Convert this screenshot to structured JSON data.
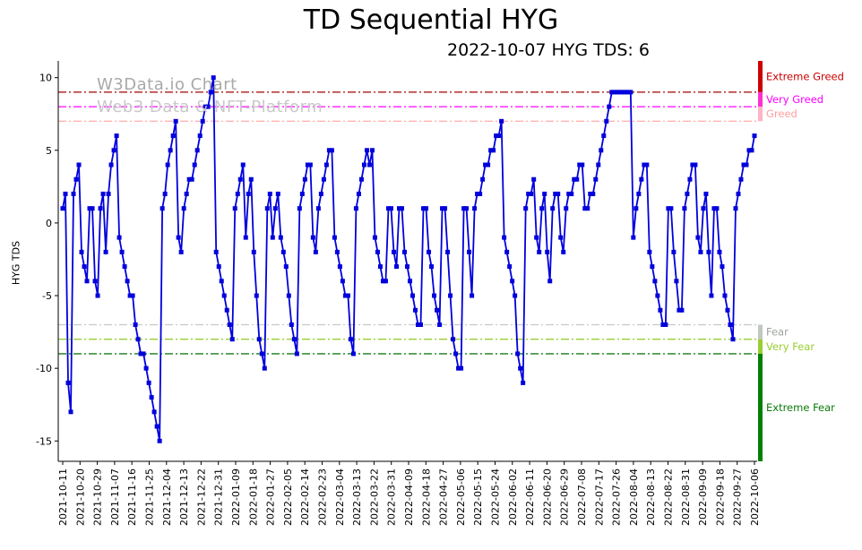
{
  "title": "TD Sequential HYG",
  "subtitle": "2022-10-07 HYG TDS: 6",
  "watermark": {
    "line1": "W3Data.io Chart",
    "line2": "Web3 Data & NFT-Platform"
  },
  "chart_data": {
    "type": "line",
    "title": "TD Sequential HYG",
    "subtitle": "2022-10-07 HYG TDS: 6",
    "xlabel": "",
    "ylabel": "HYG TDS",
    "ylim": [
      -16.4,
      11.15
    ],
    "yticks": [
      10,
      5,
      0,
      -5,
      -10,
      -15
    ],
    "grid": false,
    "legend": "none",
    "marker": "square",
    "x_tick_labels": [
      "2021-10-11",
      "2021-10-20",
      "2021-10-29",
      "2021-11-07",
      "2021-11-16",
      "2021-11-25",
      "2021-12-04",
      "2021-12-13",
      "2021-12-22",
      "2021-12-31",
      "2022-01-09",
      "2022-01-18",
      "2022-01-27",
      "2022-02-05",
      "2022-02-14",
      "2022-02-23",
      "2022-03-04",
      "2022-03-13",
      "2022-03-22",
      "2022-03-31",
      "2022-04-09",
      "2022-04-18",
      "2022-04-27",
      "2022-05-06",
      "2022-05-15",
      "2022-05-24",
      "2022-06-02",
      "2022-06-11",
      "2022-06-20",
      "2022-06-29",
      "2022-07-08",
      "2022-07-17",
      "2022-07-26",
      "2022-08-04",
      "2022-08-13",
      "2022-08-22",
      "2022-08-31",
      "2022-09-09",
      "2022-09-18",
      "2022-09-27",
      "2022-10-06"
    ],
    "series": [
      {
        "name": "HYG TDS",
        "color": "#0000dd",
        "values": [
          1,
          2,
          -11,
          -13,
          2,
          3,
          4,
          -2,
          -3,
          -4,
          1,
          1,
          -4,
          -5,
          1,
          2,
          -2,
          2,
          4,
          5,
          6,
          -1,
          -2,
          -3,
          -4,
          -5,
          -5,
          -7,
          -8,
          -9,
          -9,
          -10,
          -11,
          -12,
          -13,
          -14,
          -15,
          1,
          2,
          4,
          5,
          6,
          7,
          -1,
          -2,
          1,
          2,
          3,
          3,
          4,
          5,
          6,
          7,
          8,
          8,
          9,
          10,
          -2,
          -3,
          -4,
          -5,
          -6,
          -7,
          -8,
          1,
          2,
          3,
          4,
          -1,
          2,
          3,
          -2,
          -5,
          -8,
          -9,
          -10,
          1,
          2,
          -1,
          1,
          2,
          -1,
          -2,
          -3,
          -5,
          -7,
          -8,
          -9,
          1,
          2,
          3,
          4,
          4,
          -1,
          -2,
          1,
          2,
          3,
          4,
          5,
          5,
          -1,
          -2,
          -3,
          -4,
          -5,
          -5,
          -8,
          -9,
          1,
          2,
          3,
          4,
          5,
          4,
          5,
          -1,
          -2,
          -3,
          -4,
          -4,
          1,
          1,
          -2,
          -3,
          1,
          1,
          -2,
          -3,
          -4,
          -5,
          -6,
          -7,
          -7,
          1,
          1,
          -2,
          -3,
          -5,
          -6,
          -7,
          1,
          1,
          -2,
          -5,
          -8,
          -9,
          -10,
          -10,
          1,
          1,
          -2,
          -5,
          1,
          2,
          2,
          3,
          4,
          4,
          5,
          5,
          6,
          6,
          7,
          -1,
          -2,
          -3,
          -4,
          -5,
          -9,
          -10,
          -11,
          1,
          2,
          2,
          3,
          -1,
          -2,
          1,
          2,
          -2,
          -4,
          1,
          2,
          2,
          -1,
          -2,
          1,
          2,
          2,
          3,
          3,
          4,
          4,
          1,
          1,
          2,
          2,
          3,
          4,
          5,
          6,
          7,
          8,
          9,
          9,
          9,
          9,
          9,
          9,
          9,
          9,
          -1,
          1,
          2,
          3,
          4,
          4,
          -2,
          -3,
          -4,
          -5,
          -6,
          -7,
          -7,
          1,
          1,
          -2,
          -4,
          -6,
          -6,
          1,
          2,
          3,
          4,
          4,
          -1,
          -2,
          1,
          2,
          -2,
          -5,
          1,
          1,
          -2,
          -3,
          -5,
          -6,
          -7,
          -8,
          1,
          2,
          3,
          4,
          4,
          5,
          5,
          6
        ]
      }
    ],
    "thresholds": [
      {
        "value": 9,
        "label": "Extreme Greed",
        "line_color": "#a40000",
        "label_color": "#cc0000",
        "band": [
          11.15,
          9
        ],
        "band_color": "#cc0000"
      },
      {
        "value": 8,
        "label": "Very Greed",
        "line_color": "#ff00ff",
        "label_color": "#ff00ff",
        "band": [
          9,
          8
        ],
        "band_color": "#ff2fd2"
      },
      {
        "value": 7,
        "label": "Greed",
        "line_color": "#ffb3b3",
        "label_color": "#ff9f9f",
        "band": [
          8,
          7
        ],
        "band_color": "#ffb3c6"
      },
      {
        "value": -7,
        "label": "Fear",
        "line_color": "#c3ccc3",
        "label_color": "#9aa49a",
        "band": [
          -7,
          -8
        ],
        "band_color": "#c0c8c0"
      },
      {
        "value": -8,
        "label": "Very Fear",
        "line_color": "#9acd32",
        "label_color": "#9acd32",
        "band": [
          -8,
          -9
        ],
        "band_color": "#9acd32"
      },
      {
        "value": -9,
        "label": "Extreme Fear",
        "line_color": "#1a7a1a",
        "label_color": "#0a7a0a",
        "band": [
          -9,
          -16.4
        ],
        "band_color": "#008000"
      }
    ],
    "axis_color": "#000000"
  }
}
